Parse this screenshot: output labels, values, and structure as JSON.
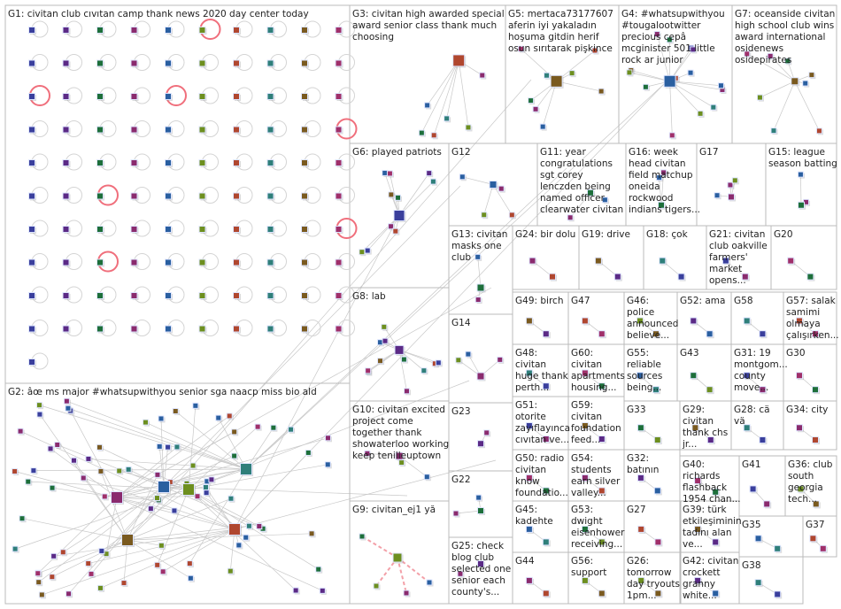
{
  "groups": [
    {
      "id": "G1",
      "lines": [
        "G1: civitan club cıvıtan camp thank news 2020 day center today"
      ]
    },
    {
      "id": "G2",
      "lines": [
        "G2: âœ ms major #whatsupwithyou senior sga naacp miss bio ald"
      ]
    },
    {
      "id": "G3",
      "lines": [
        "G3: civitan high awarded special",
        "award senior class thank much",
        "choosing"
      ]
    },
    {
      "id": "G4",
      "lines": [
        "G4: #whatsupwithyou",
        "#tougalootwitter",
        "precious cepâ",
        "mcginister 501 little",
        "rock ar junior"
      ]
    },
    {
      "id": "G5",
      "lines": [
        "G5: mertaca73177607",
        "aferin iyi yakaladın",
        "hoşuma gitdin herif",
        "osun sırıtarak pişkince"
      ]
    },
    {
      "id": "G6",
      "lines": [
        "G6: played patriots"
      ]
    },
    {
      "id": "G7",
      "lines": [
        "G7: oceanside civitan",
        "high school club wins",
        "award international",
        "osidenews",
        "osidepirates"
      ]
    },
    {
      "id": "G8",
      "lines": [
        "G8: lab"
      ]
    },
    {
      "id": "G9",
      "lines": [
        "G9: civitan_ej1 yă"
      ]
    },
    {
      "id": "G10",
      "lines": [
        "G10: civitan excited",
        "project come",
        "together thank",
        "showaterloo working",
        "keep tenilleuptown"
      ]
    },
    {
      "id": "G11",
      "lines": [
        "G11: year",
        "congratulations",
        "sgt corey",
        "lenczden being",
        "named officer",
        "clearwater civitan"
      ]
    },
    {
      "id": "G12",
      "lines": [
        "G12"
      ]
    },
    {
      "id": "G13",
      "lines": [
        "G13: civitan",
        "masks one",
        "club"
      ]
    },
    {
      "id": "G14",
      "lines": [
        "G14"
      ]
    },
    {
      "id": "G15",
      "lines": [
        "G15: league",
        "season batting"
      ]
    },
    {
      "id": "G16",
      "lines": [
        "G16: week",
        "head civitan",
        "field matchup",
        "oneida",
        "rockwood",
        "indians tigers..."
      ]
    },
    {
      "id": "G17",
      "lines": [
        "G17"
      ]
    },
    {
      "id": "G18",
      "lines": [
        "G18: çok"
      ]
    },
    {
      "id": "G19",
      "lines": [
        "G19: drive"
      ]
    },
    {
      "id": "G20",
      "lines": [
        "G20"
      ]
    },
    {
      "id": "G21",
      "lines": [
        "G21: civitan",
        "club oakville",
        "farmers'",
        "market",
        "opens..."
      ]
    },
    {
      "id": "G22",
      "lines": [
        "G22"
      ]
    },
    {
      "id": "G23",
      "lines": [
        "G23"
      ]
    },
    {
      "id": "G24",
      "lines": [
        "G24: bir dolu"
      ]
    },
    {
      "id": "G25",
      "lines": [
        "G25: check",
        "blog club",
        "selected one",
        "senior each",
        "county's..."
      ]
    },
    {
      "id": "G26",
      "lines": [
        "G26:",
        "tomorrow",
        "day tryouts",
        "1pm..."
      ]
    },
    {
      "id": "G27",
      "lines": [
        "G27"
      ]
    },
    {
      "id": "G28",
      "lines": [
        "G28: cä",
        "vä"
      ]
    },
    {
      "id": "G29",
      "lines": [
        "G29:",
        "civitan",
        "thank chs",
        "jr..."
      ]
    },
    {
      "id": "G30",
      "lines": [
        "G30"
      ]
    },
    {
      "id": "G31",
      "lines": [
        "G31: 19",
        "montgom...",
        "county",
        "move..."
      ]
    },
    {
      "id": "G32",
      "lines": [
        "G32:",
        "batının"
      ]
    },
    {
      "id": "G33",
      "lines": [
        "G33"
      ]
    },
    {
      "id": "G34",
      "lines": [
        "G34: city"
      ]
    },
    {
      "id": "G35",
      "lines": [
        "G35"
      ]
    },
    {
      "id": "G36",
      "lines": [
        "G36: club",
        "south",
        "georgia",
        "tech..."
      ]
    },
    {
      "id": "G37",
      "lines": [
        "G37"
      ]
    },
    {
      "id": "G38",
      "lines": [
        "G38"
      ]
    },
    {
      "id": "G39",
      "lines": [
        "G39: türk",
        "etkileşiminin",
        "tadını alan",
        "ve..."
      ]
    },
    {
      "id": "G40",
      "lines": [
        "G40:",
        "richards",
        "flashback",
        "1954 chan..."
      ]
    },
    {
      "id": "G41",
      "lines": [
        "G41"
      ]
    },
    {
      "id": "G42",
      "lines": [
        "G42: civitan",
        "crockett",
        "granny",
        "white..."
      ]
    },
    {
      "id": "G43",
      "lines": [
        "G43"
      ]
    },
    {
      "id": "G44",
      "lines": [
        "G44"
      ]
    },
    {
      "id": "G45",
      "lines": [
        "G45:",
        "kadehte"
      ]
    },
    {
      "id": "G46",
      "lines": [
        "G46:",
        "police",
        "announced",
        "believe..."
      ]
    },
    {
      "id": "G47",
      "lines": [
        "G47"
      ]
    },
    {
      "id": "G48",
      "lines": [
        "G48:",
        "civitan",
        "huge thank",
        "perth..."
      ]
    },
    {
      "id": "G49",
      "lines": [
        "G49: birch"
      ]
    },
    {
      "id": "G50",
      "lines": [
        "G50: radio",
        "civitan",
        "know",
        "foundatio..."
      ]
    },
    {
      "id": "G51",
      "lines": [
        "G51:",
        "otorite",
        "zayıflayınca",
        "cıvıtan ve..."
      ]
    },
    {
      "id": "G52",
      "lines": [
        "G52: ama"
      ]
    },
    {
      "id": "G53",
      "lines": [
        "G53:",
        "dwight",
        "eisenhower",
        "receiving..."
      ]
    },
    {
      "id": "G54",
      "lines": [
        "G54:",
        "students",
        "earn silver",
        "valley..."
      ]
    },
    {
      "id": "G55",
      "lines": [
        "G55:",
        "reliable",
        "sources",
        "being..."
      ]
    },
    {
      "id": "G56",
      "lines": [
        "G56:",
        "support"
      ]
    },
    {
      "id": "G57",
      "lines": [
        "G57: salak",
        "samimi",
        "olmaya",
        "çalışırken..."
      ]
    },
    {
      "id": "G58",
      "lines": [
        "G58"
      ]
    },
    {
      "id": "G59",
      "lines": [
        "G59:",
        "civitan",
        "foundation",
        "feed..."
      ]
    },
    {
      "id": "G60",
      "lines": [
        "G60:",
        "civitan",
        "apartments",
        "housing..."
      ]
    }
  ],
  "colors": {
    "border": "#bbbbbb",
    "edge": "#c8c8c8",
    "self_loop": "#f06f7c",
    "highlight_edge": "#f3a0a8",
    "text": "#222222",
    "node_palette": [
      "#3a3f9c",
      "#5b2a86",
      "#1d6f3a",
      "#8a2b6e",
      "#2a5fa0",
      "#6d8f1f",
      "#b0472f",
      "#2f7f7a",
      "#7a5a1f",
      "#a0306a"
    ]
  }
}
